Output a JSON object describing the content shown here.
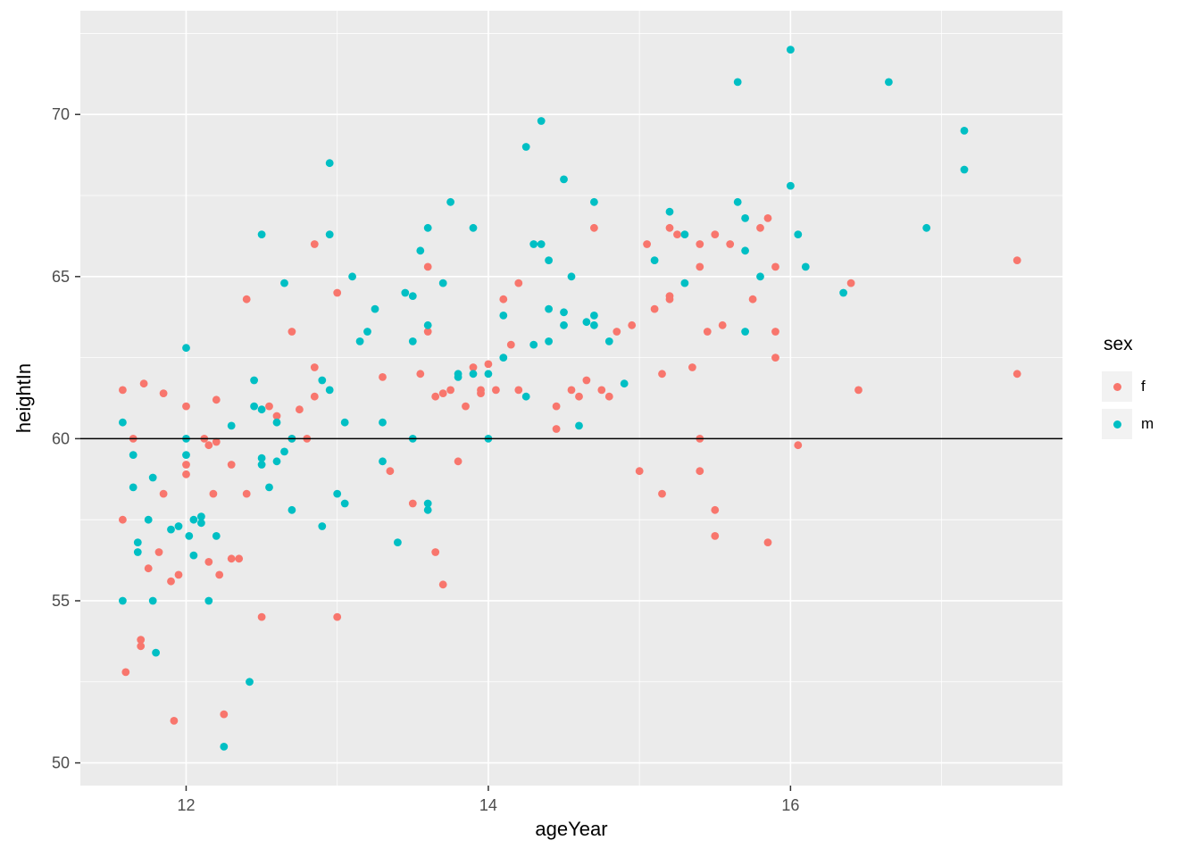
{
  "figure": {
    "background": "#FFFFFF",
    "panel_background": "#EBEBEB",
    "grid_major_color": "#FFFFFF",
    "grid_minor_color": "#FFFFFF",
    "axis_text_color": "#4D4D4D",
    "tick_mark_color": "#333333"
  },
  "axes": {
    "x_title": "ageYear",
    "y_title": "heightIn",
    "x_ticks": [
      12,
      14,
      16
    ],
    "x_tick_labels": [
      "12",
      "14",
      "16"
    ],
    "y_ticks": [
      50,
      55,
      60,
      65,
      70
    ],
    "y_tick_labels": [
      "50",
      "55",
      "60",
      "65",
      "70"
    ]
  },
  "legend": {
    "title": "sex",
    "key_background": "#F2F2F2",
    "items": [
      {
        "label": "f",
        "color": "#F8766D"
      },
      {
        "label": "m",
        "color": "#00BFC4"
      }
    ]
  },
  "chart_data": {
    "type": "scatter",
    "title": "",
    "xlabel": "ageYear",
    "ylabel": "heightIn",
    "xlim": [
      11.3,
      17.8
    ],
    "ylim": [
      49.3,
      73.2
    ],
    "x_major_ticks": [
      12,
      14,
      16
    ],
    "y_major_ticks": [
      50,
      55,
      60,
      65,
      70
    ],
    "x_minor_ticks": [
      13,
      15,
      17
    ],
    "y_minor_ticks": [
      52.5,
      57.5,
      62.5,
      67.5,
      72.5
    ],
    "grid": true,
    "legend_position": "right",
    "legend_title": "sex",
    "hline": {
      "y": 60,
      "color": "#000000"
    },
    "point_radius_px": 4.4,
    "series": [
      {
        "name": "f",
        "color": "#F8766D",
        "points": [
          [
            11.58,
            61.5
          ],
          [
            11.58,
            57.5
          ],
          [
            11.6,
            52.8
          ],
          [
            11.65,
            60.0
          ],
          [
            11.7,
            53.8
          ],
          [
            11.7,
            53.6
          ],
          [
            11.72,
            61.7
          ],
          [
            11.75,
            56.0
          ],
          [
            11.82,
            56.5
          ],
          [
            11.85,
            61.4
          ],
          [
            11.85,
            58.3
          ],
          [
            11.9,
            55.6
          ],
          [
            11.92,
            51.3
          ],
          [
            11.95,
            55.8
          ],
          [
            12.0,
            61.0
          ],
          [
            12.0,
            59.2
          ],
          [
            12.0,
            58.9
          ],
          [
            12.12,
            60.0
          ],
          [
            12.15,
            59.8
          ],
          [
            12.15,
            56.2
          ],
          [
            12.18,
            58.3
          ],
          [
            12.2,
            61.2
          ],
          [
            12.2,
            59.9
          ],
          [
            12.22,
            55.8
          ],
          [
            12.25,
            51.5
          ],
          [
            12.3,
            59.2
          ],
          [
            12.3,
            56.3
          ],
          [
            12.35,
            56.3
          ],
          [
            12.4,
            64.3
          ],
          [
            12.4,
            58.3
          ],
          [
            12.5,
            54.5
          ],
          [
            12.55,
            61.0
          ],
          [
            12.6,
            60.7
          ],
          [
            12.7,
            63.3
          ],
          [
            12.7,
            60.0
          ],
          [
            12.75,
            60.9
          ],
          [
            12.8,
            60.0
          ],
          [
            12.85,
            66.0
          ],
          [
            12.85,
            62.2
          ],
          [
            12.85,
            61.3
          ],
          [
            13.0,
            64.5
          ],
          [
            13.0,
            54.5
          ],
          [
            13.3,
            61.9
          ],
          [
            13.35,
            59.0
          ],
          [
            13.5,
            58.0
          ],
          [
            13.55,
            62.0
          ],
          [
            13.6,
            65.3
          ],
          [
            13.6,
            63.3
          ],
          [
            13.65,
            56.5
          ],
          [
            13.65,
            61.3
          ],
          [
            13.7,
            61.4
          ],
          [
            13.7,
            55.5
          ],
          [
            13.75,
            61.5
          ],
          [
            13.8,
            59.3
          ],
          [
            13.85,
            61.0
          ],
          [
            13.9,
            62.2
          ],
          [
            13.95,
            61.5
          ],
          [
            13.95,
            61.4
          ],
          [
            14.0,
            62.3
          ],
          [
            14.05,
            61.5
          ],
          [
            14.1,
            64.3
          ],
          [
            14.15,
            62.9
          ],
          [
            14.2,
            61.5
          ],
          [
            14.2,
            64.8
          ],
          [
            14.45,
            61.0
          ],
          [
            14.45,
            60.3
          ],
          [
            14.55,
            61.5
          ],
          [
            14.6,
            61.3
          ],
          [
            14.65,
            61.8
          ],
          [
            14.7,
            66.5
          ],
          [
            14.75,
            61.5
          ],
          [
            14.8,
            61.3
          ],
          [
            14.85,
            63.3
          ],
          [
            14.95,
            63.5
          ],
          [
            15.0,
            59.0
          ],
          [
            15.05,
            66.0
          ],
          [
            15.1,
            64.0
          ],
          [
            15.15,
            62.0
          ],
          [
            15.15,
            58.3
          ],
          [
            15.2,
            66.5
          ],
          [
            15.2,
            64.4
          ],
          [
            15.2,
            64.3
          ],
          [
            15.25,
            66.3
          ],
          [
            15.35,
            62.2
          ],
          [
            15.4,
            66.0
          ],
          [
            15.4,
            65.3
          ],
          [
            15.4,
            60.0
          ],
          [
            15.4,
            59.0
          ],
          [
            15.45,
            63.3
          ],
          [
            15.5,
            66.3
          ],
          [
            15.5,
            57.8
          ],
          [
            15.5,
            57.0
          ],
          [
            15.55,
            63.5
          ],
          [
            15.6,
            66.0
          ],
          [
            15.75,
            64.3
          ],
          [
            15.8,
            66.5
          ],
          [
            15.85,
            66.8
          ],
          [
            15.85,
            56.8
          ],
          [
            15.9,
            65.3
          ],
          [
            15.9,
            63.3
          ],
          [
            15.9,
            62.5
          ],
          [
            16.05,
            59.8
          ],
          [
            16.4,
            64.8
          ],
          [
            16.45,
            61.5
          ],
          [
            17.5,
            65.5
          ],
          [
            17.5,
            62.0
          ]
        ]
      },
      {
        "name": "m",
        "color": "#00BFC4",
        "points": [
          [
            11.58,
            60.5
          ],
          [
            11.58,
            55.0
          ],
          [
            11.65,
            59.5
          ],
          [
            11.65,
            58.5
          ],
          [
            11.68,
            56.8
          ],
          [
            11.68,
            56.5
          ],
          [
            11.75,
            57.5
          ],
          [
            11.78,
            58.8
          ],
          [
            11.78,
            55.0
          ],
          [
            11.8,
            53.4
          ],
          [
            11.9,
            57.2
          ],
          [
            11.95,
            57.3
          ],
          [
            12.0,
            62.8
          ],
          [
            12.0,
            60.0
          ],
          [
            12.0,
            59.5
          ],
          [
            12.02,
            57.0
          ],
          [
            12.05,
            57.5
          ],
          [
            12.05,
            56.4
          ],
          [
            12.1,
            57.6
          ],
          [
            12.1,
            57.4
          ],
          [
            12.15,
            55.0
          ],
          [
            12.2,
            57.0
          ],
          [
            12.25,
            50.5
          ],
          [
            12.3,
            60.4
          ],
          [
            12.42,
            52.5
          ],
          [
            12.45,
            61.8
          ],
          [
            12.45,
            61.0
          ],
          [
            12.5,
            66.3
          ],
          [
            12.5,
            60.9
          ],
          [
            12.5,
            59.4
          ],
          [
            12.5,
            59.2
          ],
          [
            12.55,
            58.5
          ],
          [
            12.6,
            60.5
          ],
          [
            12.6,
            59.3
          ],
          [
            12.65,
            64.8
          ],
          [
            12.65,
            59.6
          ],
          [
            12.7,
            60.0
          ],
          [
            12.7,
            57.8
          ],
          [
            12.9,
            61.8
          ],
          [
            12.9,
            57.3
          ],
          [
            12.95,
            68.5
          ],
          [
            12.95,
            66.3
          ],
          [
            12.95,
            61.5
          ],
          [
            13.0,
            58.3
          ],
          [
            13.05,
            60.5
          ],
          [
            13.05,
            58.0
          ],
          [
            13.1,
            65.0
          ],
          [
            13.15,
            63.0
          ],
          [
            13.2,
            63.3
          ],
          [
            13.25,
            64.0
          ],
          [
            13.3,
            60.5
          ],
          [
            13.3,
            59.3
          ],
          [
            13.4,
            56.8
          ],
          [
            13.45,
            64.5
          ],
          [
            13.5,
            64.4
          ],
          [
            13.5,
            63.0
          ],
          [
            13.5,
            60.0
          ],
          [
            13.55,
            65.8
          ],
          [
            13.6,
            66.5
          ],
          [
            13.6,
            63.5
          ],
          [
            13.6,
            58.0
          ],
          [
            13.6,
            57.8
          ],
          [
            13.7,
            64.8
          ],
          [
            13.75,
            67.3
          ],
          [
            13.8,
            62.0
          ],
          [
            13.8,
            61.9
          ],
          [
            13.9,
            66.5
          ],
          [
            13.9,
            62.0
          ],
          [
            14.0,
            62.0
          ],
          [
            14.0,
            60.0
          ],
          [
            14.1,
            63.8
          ],
          [
            14.1,
            62.5
          ],
          [
            14.25,
            69.0
          ],
          [
            14.25,
            61.3
          ],
          [
            14.3,
            66.0
          ],
          [
            14.3,
            62.9
          ],
          [
            14.35,
            69.8
          ],
          [
            14.35,
            66.0
          ],
          [
            14.4,
            65.5
          ],
          [
            14.4,
            64.0
          ],
          [
            14.4,
            63.0
          ],
          [
            14.5,
            68.0
          ],
          [
            14.5,
            63.9
          ],
          [
            14.5,
            63.5
          ],
          [
            14.55,
            65.0
          ],
          [
            14.6,
            60.4
          ],
          [
            14.65,
            63.6
          ],
          [
            14.7,
            67.3
          ],
          [
            14.7,
            63.5
          ],
          [
            14.7,
            63.8
          ],
          [
            14.8,
            63.0
          ],
          [
            14.9,
            61.7
          ],
          [
            15.1,
            65.5
          ],
          [
            15.2,
            67.0
          ],
          [
            15.3,
            66.3
          ],
          [
            15.3,
            64.8
          ],
          [
            15.65,
            71.0
          ],
          [
            15.65,
            67.3
          ],
          [
            15.7,
            66.8
          ],
          [
            15.7,
            65.8
          ],
          [
            15.7,
            63.3
          ],
          [
            15.8,
            65.0
          ],
          [
            16.0,
            72.0
          ],
          [
            16.0,
            67.8
          ],
          [
            16.05,
            66.3
          ],
          [
            16.1,
            65.3
          ],
          [
            16.35,
            64.5
          ],
          [
            16.65,
            71.0
          ],
          [
            16.9,
            66.5
          ],
          [
            17.15,
            69.5
          ],
          [
            17.15,
            68.3
          ]
        ]
      }
    ]
  }
}
